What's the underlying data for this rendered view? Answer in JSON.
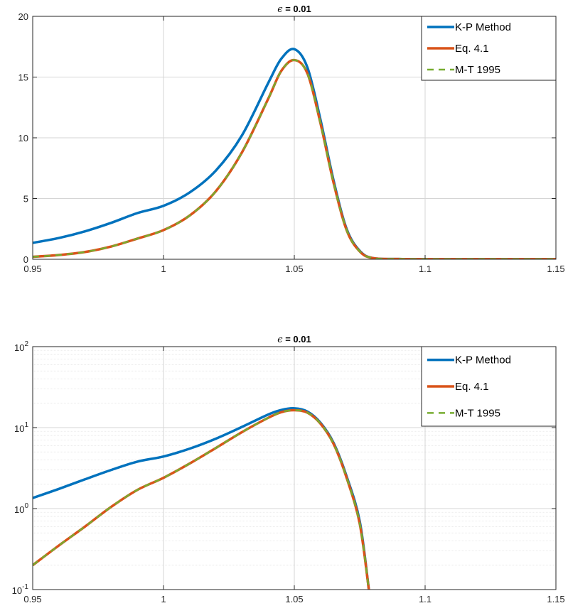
{
  "chart_data": [
    {
      "type": "line",
      "title_symbol": "ϵ",
      "title_text": " = 0.01",
      "y_scale": "linear",
      "xlim": [
        0.95,
        1.15
      ],
      "ylim": [
        0,
        20
      ],
      "xticks": [
        0.95,
        1,
        1.05,
        1.1,
        1.15
      ],
      "xtick_labels": [
        "0.95",
        "1",
        "1.05",
        "1.1",
        "1.15"
      ],
      "yticks": [
        0,
        5,
        10,
        15,
        20
      ],
      "ytick_labels": [
        "0",
        "5",
        "10",
        "15",
        "20"
      ],
      "grid": true,
      "legend_position": "top-right",
      "x": [
        0.95,
        0.96,
        0.97,
        0.98,
        0.99,
        1.0,
        1.01,
        1.02,
        1.03,
        1.04,
        1.045,
        1.05,
        1.055,
        1.06,
        1.065,
        1.07,
        1.075,
        1.08,
        1.09,
        1.1,
        1.15
      ],
      "series": [
        {
          "name": "K-P Method",
          "color": "#0072BD",
          "style": "solid",
          "values": [
            1.35,
            1.75,
            2.3,
            3.0,
            3.8,
            4.4,
            5.5,
            7.3,
            10.2,
            14.5,
            16.5,
            17.3,
            15.8,
            11.5,
            6.5,
            2.5,
            0.7,
            0.1,
            0.02,
            0.01,
            0.01
          ]
        },
        {
          "name": "Eq. 4.1",
          "color": "#D95319",
          "style": "solid",
          "values": [
            0.2,
            0.35,
            0.6,
            1.05,
            1.7,
            2.4,
            3.6,
            5.6,
            8.8,
            13.2,
            15.5,
            16.4,
            15.3,
            11.2,
            6.3,
            2.4,
            0.65,
            0.1,
            0.02,
            0.01,
            0.01
          ]
        },
        {
          "name": "M-T 1995",
          "color": "#77AC30",
          "style": "dashed",
          "values": [
            0.2,
            0.35,
            0.6,
            1.05,
            1.7,
            2.4,
            3.6,
            5.6,
            8.8,
            13.2,
            15.5,
            16.4,
            15.3,
            11.2,
            6.3,
            2.4,
            0.65,
            0.1,
            0.02,
            0.01,
            0.01
          ]
        }
      ]
    },
    {
      "type": "line",
      "title_symbol": "ϵ",
      "title_text": " = 0.01",
      "y_scale": "log",
      "xlim": [
        0.95,
        1.15
      ],
      "ylim": [
        0.1,
        100
      ],
      "xticks": [
        0.95,
        1,
        1.05,
        1.1,
        1.15
      ],
      "xtick_labels": [
        "0.95",
        "1",
        "1.05",
        "1.1",
        "1.15"
      ],
      "yticks": [
        0.1,
        1,
        10,
        100
      ],
      "ytick_bases": [
        "10",
        "10",
        "10",
        "10"
      ],
      "ytick_exponents": [
        "-1",
        "0",
        "1",
        "2"
      ],
      "grid": true,
      "minor_grid": true,
      "legend_position": "top-right",
      "x": [
        0.95,
        0.96,
        0.97,
        0.98,
        0.99,
        1.0,
        1.01,
        1.02,
        1.03,
        1.04,
        1.045,
        1.05,
        1.055,
        1.06,
        1.065,
        1.07,
        1.075,
        1.0785
      ],
      "series": [
        {
          "name": "K-P Method",
          "color": "#0072BD",
          "style": "solid",
          "values": [
            1.35,
            1.75,
            2.3,
            3.0,
            3.8,
            4.4,
            5.5,
            7.3,
            10.2,
            14.5,
            16.5,
            17.3,
            15.8,
            11.5,
            6.5,
            2.5,
            0.7,
            0.1
          ]
        },
        {
          "name": "Eq. 4.1",
          "color": "#D95319",
          "style": "solid",
          "values": [
            0.2,
            0.35,
            0.6,
            1.05,
            1.7,
            2.4,
            3.6,
            5.6,
            8.8,
            13.2,
            15.5,
            16.4,
            15.3,
            11.2,
            6.3,
            2.4,
            0.65,
            0.1
          ]
        },
        {
          "name": "M-T 1995",
          "color": "#77AC30",
          "style": "dashed",
          "values": [
            0.2,
            0.35,
            0.6,
            1.05,
            1.7,
            2.4,
            3.6,
            5.6,
            8.8,
            13.2,
            15.5,
            16.4,
            15.3,
            11.2,
            6.3,
            2.4,
            0.65,
            0.1
          ]
        }
      ]
    }
  ]
}
